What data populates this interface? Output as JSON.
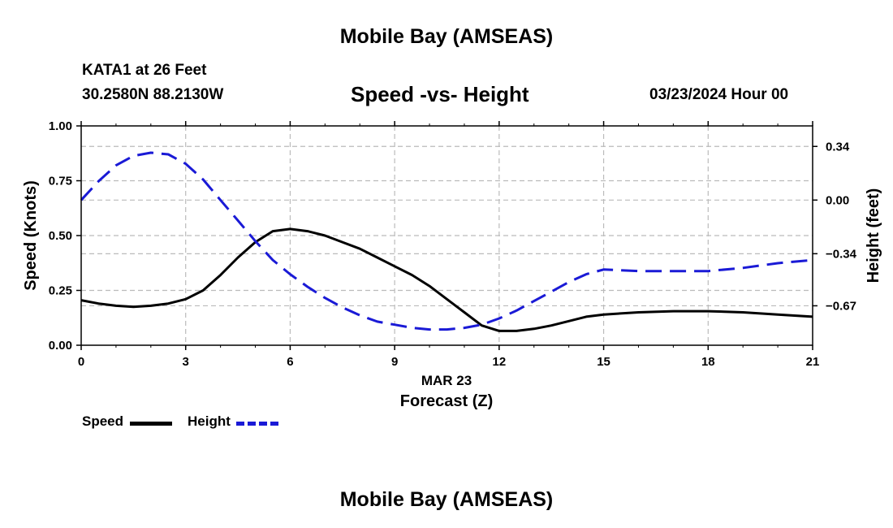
{
  "header": {
    "title": "Mobile Bay (AMSEAS)",
    "station": "KATA1 at 26 Feet",
    "coords": "30.2580N  88.2130W",
    "subtitle": "Speed -vs- Height",
    "datetime": "03/23/2024 Hour 00"
  },
  "footer": {
    "title": "Mobile Bay (AMSEAS)"
  },
  "legend": {
    "speed_label": "Speed",
    "height_label": "Height"
  },
  "colors": {
    "speed": "#000000",
    "height": "#1a1ad6",
    "grid": "#bbbbbb"
  },
  "chart_data": {
    "type": "line",
    "title": "Speed -vs- Height",
    "xlabel": "Forecast (Z)",
    "xsublabel": "MAR 23",
    "ylabel": "Speed (Knots)",
    "y2label": "Height (feet)",
    "xlim": [
      0,
      21
    ],
    "ylim": [
      0,
      1
    ],
    "y2lim": [
      -0.92,
      0.47
    ],
    "x_ticks": [
      0,
      3,
      6,
      9,
      12,
      15,
      18,
      21
    ],
    "x_tick_labels": [
      "0",
      "3",
      "6",
      "9",
      "12",
      "15",
      "18",
      "21"
    ],
    "y_ticks": [
      0,
      0.25,
      0.5,
      0.75,
      1.0
    ],
    "y_tick_labels": [
      "0.00",
      "0.25",
      "0.50",
      "0.75",
      "1.00"
    ],
    "y2_ticks": [
      0.34,
      0.0,
      -0.34,
      -0.67
    ],
    "y2_tick_labels": [
      "0.34",
      "0.00",
      "−0.34",
      "−0.67"
    ],
    "grid": true,
    "series": [
      {
        "name": "Speed",
        "axis": "left",
        "style": "solid",
        "x": [
          0,
          0.5,
          1,
          1.5,
          2,
          2.5,
          3,
          3.5,
          4,
          4.5,
          5,
          5.5,
          6,
          6.5,
          7,
          7.5,
          8,
          8.5,
          9,
          9.5,
          10,
          10.5,
          11,
          11.5,
          12,
          12.5,
          13,
          13.5,
          14,
          14.5,
          15,
          16,
          17,
          18,
          19,
          20,
          21
        ],
        "values": [
          0.205,
          0.19,
          0.18,
          0.175,
          0.18,
          0.19,
          0.21,
          0.25,
          0.32,
          0.4,
          0.47,
          0.52,
          0.53,
          0.52,
          0.5,
          0.47,
          0.44,
          0.4,
          0.36,
          0.32,
          0.27,
          0.21,
          0.15,
          0.09,
          0.065,
          0.065,
          0.075,
          0.09,
          0.11,
          0.13,
          0.14,
          0.15,
          0.155,
          0.155,
          0.15,
          0.14,
          0.13
        ]
      },
      {
        "name": "Height",
        "axis": "right",
        "style": "dashed",
        "x": [
          0,
          0.5,
          1,
          1.5,
          2,
          2.5,
          3,
          3.5,
          4,
          4.5,
          5,
          5.5,
          6,
          6.5,
          7,
          7.5,
          8,
          8.5,
          9,
          9.5,
          10,
          10.5,
          11,
          11.5,
          12,
          12.5,
          13,
          13.5,
          14,
          14.5,
          15,
          16,
          17,
          18,
          19,
          20,
          21
        ],
        "values": [
          0.0,
          0.12,
          0.22,
          0.28,
          0.3,
          0.29,
          0.23,
          0.13,
          0.0,
          -0.13,
          -0.26,
          -0.38,
          -0.47,
          -0.55,
          -0.62,
          -0.68,
          -0.73,
          -0.77,
          -0.79,
          -0.81,
          -0.82,
          -0.82,
          -0.81,
          -0.79,
          -0.75,
          -0.7,
          -0.64,
          -0.58,
          -0.52,
          -0.47,
          -0.44,
          -0.45,
          -0.45,
          -0.45,
          -0.43,
          -0.4,
          -0.38
        ]
      }
    ]
  }
}
